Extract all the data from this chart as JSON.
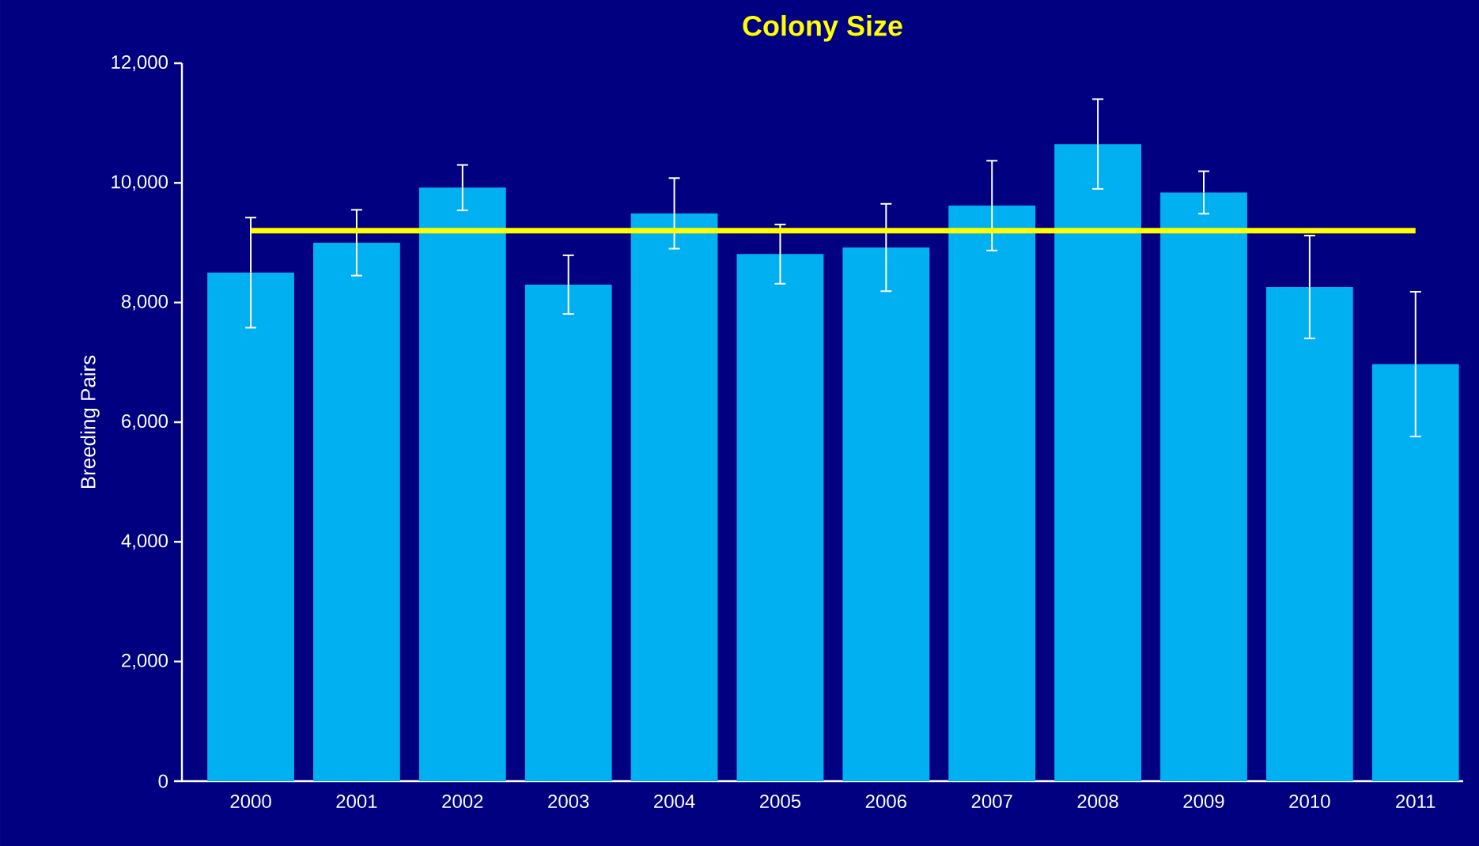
{
  "chart_data": {
    "type": "bar",
    "title": "Colony Size",
    "ylabel": "Breeding Pairs",
    "categories": [
      "2000",
      "2001",
      "2002",
      "2003",
      "2004",
      "2005",
      "2006",
      "2007",
      "2008",
      "2009",
      "2010",
      "2011"
    ],
    "values": [
      8500,
      9000,
      9920,
      8300,
      9490,
      8810,
      8920,
      9620,
      10650,
      9840,
      8260,
      6970
    ],
    "errors": [
      920,
      550,
      380,
      490,
      590,
      495,
      730,
      750,
      750,
      355,
      860,
      1210
    ],
    "color": "#00b0f0",
    "ylim": [
      0,
      12000
    ],
    "yticks": [
      0,
      {
        "value": 2000,
        "label": "2,000"
      },
      {
        "value": 4000,
        "label": "4,000"
      },
      {
        "value": 6000,
        "label": "6,000"
      },
      {
        "value": 8000,
        "label": "8,000"
      },
      {
        "value": 10000,
        "label": "10,000"
      },
      {
        "value": 12000,
        "label": "12,000"
      }
    ],
    "ref_lines": [
      {
        "axis": "y",
        "value": 9200,
        "color": "#ffff00"
      }
    ]
  }
}
